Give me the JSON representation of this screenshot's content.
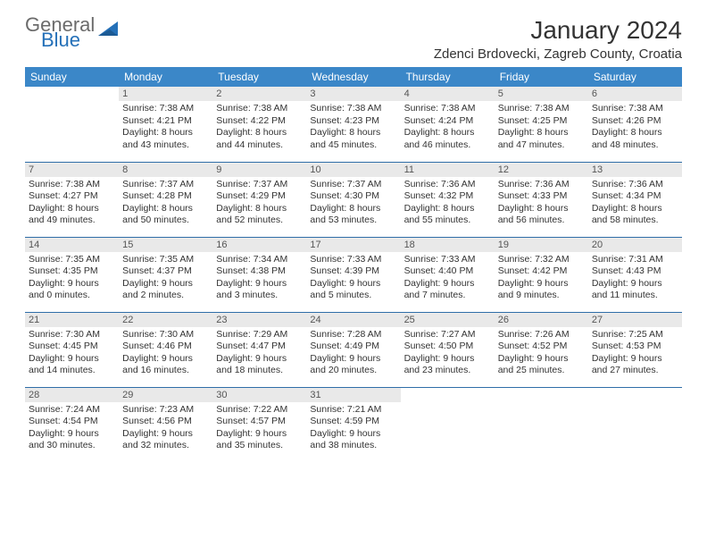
{
  "logo": {
    "text1": "General",
    "text2": "Blue",
    "color1": "#6b6b6b",
    "color2": "#2470b8"
  },
  "title": "January 2024",
  "location": "Zdenci Brdovecki, Zagreb County, Croatia",
  "header_bg": "#3b87c8",
  "header_fg": "#ffffff",
  "daynum_bg": "#e9e9e9",
  "row_border": "#2f6ea8",
  "dayNames": [
    "Sunday",
    "Monday",
    "Tuesday",
    "Wednesday",
    "Thursday",
    "Friday",
    "Saturday"
  ],
  "weeks": [
    [
      {
        "n": "",
        "sr": "",
        "ss": "",
        "dl1": "",
        "dl2": "",
        "empty": true
      },
      {
        "n": "1",
        "sr": "Sunrise: 7:38 AM",
        "ss": "Sunset: 4:21 PM",
        "dl1": "Daylight: 8 hours",
        "dl2": "and 43 minutes."
      },
      {
        "n": "2",
        "sr": "Sunrise: 7:38 AM",
        "ss": "Sunset: 4:22 PM",
        "dl1": "Daylight: 8 hours",
        "dl2": "and 44 minutes."
      },
      {
        "n": "3",
        "sr": "Sunrise: 7:38 AM",
        "ss": "Sunset: 4:23 PM",
        "dl1": "Daylight: 8 hours",
        "dl2": "and 45 minutes."
      },
      {
        "n": "4",
        "sr": "Sunrise: 7:38 AM",
        "ss": "Sunset: 4:24 PM",
        "dl1": "Daylight: 8 hours",
        "dl2": "and 46 minutes."
      },
      {
        "n": "5",
        "sr": "Sunrise: 7:38 AM",
        "ss": "Sunset: 4:25 PM",
        "dl1": "Daylight: 8 hours",
        "dl2": "and 47 minutes."
      },
      {
        "n": "6",
        "sr": "Sunrise: 7:38 AM",
        "ss": "Sunset: 4:26 PM",
        "dl1": "Daylight: 8 hours",
        "dl2": "and 48 minutes."
      }
    ],
    [
      {
        "n": "7",
        "sr": "Sunrise: 7:38 AM",
        "ss": "Sunset: 4:27 PM",
        "dl1": "Daylight: 8 hours",
        "dl2": "and 49 minutes."
      },
      {
        "n": "8",
        "sr": "Sunrise: 7:37 AM",
        "ss": "Sunset: 4:28 PM",
        "dl1": "Daylight: 8 hours",
        "dl2": "and 50 minutes."
      },
      {
        "n": "9",
        "sr": "Sunrise: 7:37 AM",
        "ss": "Sunset: 4:29 PM",
        "dl1": "Daylight: 8 hours",
        "dl2": "and 52 minutes."
      },
      {
        "n": "10",
        "sr": "Sunrise: 7:37 AM",
        "ss": "Sunset: 4:30 PM",
        "dl1": "Daylight: 8 hours",
        "dl2": "and 53 minutes."
      },
      {
        "n": "11",
        "sr": "Sunrise: 7:36 AM",
        "ss": "Sunset: 4:32 PM",
        "dl1": "Daylight: 8 hours",
        "dl2": "and 55 minutes."
      },
      {
        "n": "12",
        "sr": "Sunrise: 7:36 AM",
        "ss": "Sunset: 4:33 PM",
        "dl1": "Daylight: 8 hours",
        "dl2": "and 56 minutes."
      },
      {
        "n": "13",
        "sr": "Sunrise: 7:36 AM",
        "ss": "Sunset: 4:34 PM",
        "dl1": "Daylight: 8 hours",
        "dl2": "and 58 minutes."
      }
    ],
    [
      {
        "n": "14",
        "sr": "Sunrise: 7:35 AM",
        "ss": "Sunset: 4:35 PM",
        "dl1": "Daylight: 9 hours",
        "dl2": "and 0 minutes."
      },
      {
        "n": "15",
        "sr": "Sunrise: 7:35 AM",
        "ss": "Sunset: 4:37 PM",
        "dl1": "Daylight: 9 hours",
        "dl2": "and 2 minutes."
      },
      {
        "n": "16",
        "sr": "Sunrise: 7:34 AM",
        "ss": "Sunset: 4:38 PM",
        "dl1": "Daylight: 9 hours",
        "dl2": "and 3 minutes."
      },
      {
        "n": "17",
        "sr": "Sunrise: 7:33 AM",
        "ss": "Sunset: 4:39 PM",
        "dl1": "Daylight: 9 hours",
        "dl2": "and 5 minutes."
      },
      {
        "n": "18",
        "sr": "Sunrise: 7:33 AM",
        "ss": "Sunset: 4:40 PM",
        "dl1": "Daylight: 9 hours",
        "dl2": "and 7 minutes."
      },
      {
        "n": "19",
        "sr": "Sunrise: 7:32 AM",
        "ss": "Sunset: 4:42 PM",
        "dl1": "Daylight: 9 hours",
        "dl2": "and 9 minutes."
      },
      {
        "n": "20",
        "sr": "Sunrise: 7:31 AM",
        "ss": "Sunset: 4:43 PM",
        "dl1": "Daylight: 9 hours",
        "dl2": "and 11 minutes."
      }
    ],
    [
      {
        "n": "21",
        "sr": "Sunrise: 7:30 AM",
        "ss": "Sunset: 4:45 PM",
        "dl1": "Daylight: 9 hours",
        "dl2": "and 14 minutes."
      },
      {
        "n": "22",
        "sr": "Sunrise: 7:30 AM",
        "ss": "Sunset: 4:46 PM",
        "dl1": "Daylight: 9 hours",
        "dl2": "and 16 minutes."
      },
      {
        "n": "23",
        "sr": "Sunrise: 7:29 AM",
        "ss": "Sunset: 4:47 PM",
        "dl1": "Daylight: 9 hours",
        "dl2": "and 18 minutes."
      },
      {
        "n": "24",
        "sr": "Sunrise: 7:28 AM",
        "ss": "Sunset: 4:49 PM",
        "dl1": "Daylight: 9 hours",
        "dl2": "and 20 minutes."
      },
      {
        "n": "25",
        "sr": "Sunrise: 7:27 AM",
        "ss": "Sunset: 4:50 PM",
        "dl1": "Daylight: 9 hours",
        "dl2": "and 23 minutes."
      },
      {
        "n": "26",
        "sr": "Sunrise: 7:26 AM",
        "ss": "Sunset: 4:52 PM",
        "dl1": "Daylight: 9 hours",
        "dl2": "and 25 minutes."
      },
      {
        "n": "27",
        "sr": "Sunrise: 7:25 AM",
        "ss": "Sunset: 4:53 PM",
        "dl1": "Daylight: 9 hours",
        "dl2": "and 27 minutes."
      }
    ],
    [
      {
        "n": "28",
        "sr": "Sunrise: 7:24 AM",
        "ss": "Sunset: 4:54 PM",
        "dl1": "Daylight: 9 hours",
        "dl2": "and 30 minutes."
      },
      {
        "n": "29",
        "sr": "Sunrise: 7:23 AM",
        "ss": "Sunset: 4:56 PM",
        "dl1": "Daylight: 9 hours",
        "dl2": "and 32 minutes."
      },
      {
        "n": "30",
        "sr": "Sunrise: 7:22 AM",
        "ss": "Sunset: 4:57 PM",
        "dl1": "Daylight: 9 hours",
        "dl2": "and 35 minutes."
      },
      {
        "n": "31",
        "sr": "Sunrise: 7:21 AM",
        "ss": "Sunset: 4:59 PM",
        "dl1": "Daylight: 9 hours",
        "dl2": "and 38 minutes."
      },
      {
        "n": "",
        "sr": "",
        "ss": "",
        "dl1": "",
        "dl2": "",
        "empty": true
      },
      {
        "n": "",
        "sr": "",
        "ss": "",
        "dl1": "",
        "dl2": "",
        "empty": true
      },
      {
        "n": "",
        "sr": "",
        "ss": "",
        "dl1": "",
        "dl2": "",
        "empty": true
      }
    ]
  ]
}
